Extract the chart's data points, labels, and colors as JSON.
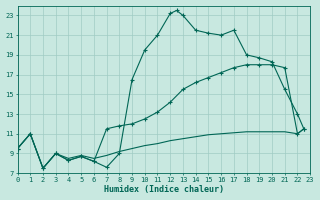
{
  "xlabel": "Humidex (Indice chaleur)",
  "bg_color": "#c8e8e0",
  "grid_color": "#a0ccc4",
  "line_color": "#006655",
  "xlim": [
    0,
    23
  ],
  "ylim": [
    7,
    24
  ],
  "xticks": [
    0,
    1,
    2,
    3,
    4,
    5,
    6,
    7,
    8,
    9,
    10,
    11,
    12,
    13,
    14,
    15,
    16,
    17,
    18,
    19,
    20,
    21,
    22,
    23
  ],
  "yticks": [
    7,
    9,
    11,
    13,
    15,
    17,
    19,
    21,
    23
  ],
  "curve1_x": [
    0,
    1,
    2,
    3,
    4,
    5,
    6,
    7,
    8,
    9,
    10,
    11,
    12,
    12.5,
    13,
    14,
    15,
    16,
    17,
    18,
    19,
    20,
    21,
    22,
    22.5
  ],
  "curve1_y": [
    9.5,
    11,
    7.5,
    9.0,
    8.3,
    8.7,
    8.2,
    7.6,
    9.0,
    16.5,
    19.5,
    21.0,
    23.2,
    23.5,
    23.0,
    21.5,
    21.2,
    21.0,
    21.5,
    19.0,
    18.7,
    18.3,
    15.5,
    13.0,
    11.5
  ],
  "curve2_x": [
    0,
    1,
    2,
    3,
    4,
    5,
    6,
    7,
    8,
    9,
    10,
    11,
    12,
    13,
    14,
    15,
    16,
    17,
    18,
    19,
    20,
    21,
    22,
    22.5
  ],
  "curve2_y": [
    9.5,
    11,
    7.5,
    9.0,
    8.3,
    8.7,
    8.2,
    11.5,
    11.8,
    12.0,
    12.5,
    13.2,
    14.2,
    15.5,
    16.2,
    16.7,
    17.2,
    17.7,
    18.0,
    18.0,
    18.0,
    17.7,
    11.0,
    11.5
  ],
  "curve3_x": [
    0,
    1,
    2,
    3,
    4,
    5,
    6,
    7,
    8,
    9,
    10,
    11,
    12,
    13,
    14,
    15,
    16,
    17,
    18,
    19,
    20,
    21,
    22,
    22.5
  ],
  "curve3_y": [
    9.5,
    11,
    7.5,
    9.0,
    8.5,
    8.8,
    8.5,
    8.8,
    9.2,
    9.5,
    9.8,
    10.0,
    10.3,
    10.5,
    10.7,
    10.9,
    11.0,
    11.1,
    11.2,
    11.2,
    11.2,
    11.2,
    11.0,
    11.5
  ]
}
